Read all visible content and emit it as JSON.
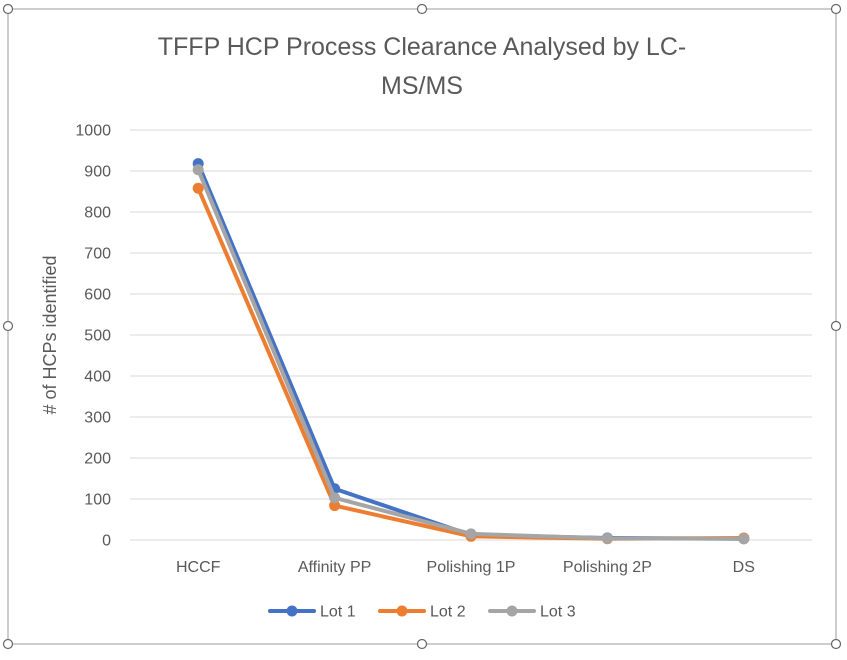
{
  "chart_data": {
    "type": "line",
    "title_lines": [
      "TFFP HCP Process Clearance Analysed by LC-",
      "MS/MS"
    ],
    "xlabel": "",
    "ylabel": "# of HCPs identified",
    "categories": [
      "HCCF",
      "Affinity PP",
      "Polishing 1P",
      "Polishing 2P",
      "DS"
    ],
    "ylim": [
      0,
      1000
    ],
    "yticks": [
      "0",
      "100",
      "200",
      "300",
      "400",
      "500",
      "600",
      "700",
      "800",
      "900",
      "1000"
    ],
    "grid": true,
    "legend_position": "bottom",
    "series": [
      {
        "name": "Lot 1",
        "color": "#4472c4",
        "values": [
          918,
          125,
          12,
          5,
          3
        ]
      },
      {
        "name": "Lot 2",
        "color": "#ed7d31",
        "values": [
          858,
          84,
          9,
          3,
          5
        ]
      },
      {
        "name": "Lot 3",
        "color": "#a5a5a5",
        "values": [
          903,
          103,
          15,
          4,
          3
        ]
      }
    ]
  }
}
